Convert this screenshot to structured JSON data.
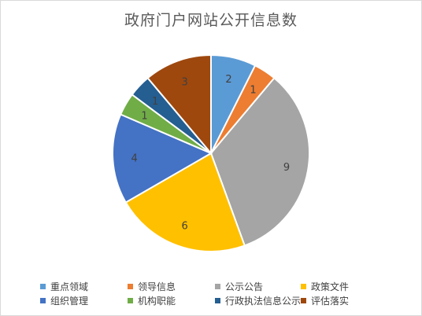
{
  "chart_data": {
    "type": "pie",
    "title": "政府门户网站公开信息数",
    "categories": [
      "重点领域",
      "领导信息",
      "公示公告",
      "政策文件",
      "组织管理",
      "机构职能",
      "行政执法信息公示",
      "评估落实"
    ],
    "values": [
      2,
      1,
      9,
      6,
      4,
      1,
      1,
      3
    ],
    "colors": [
      "#5b9bd5",
      "#ed7d31",
      "#a5a5a5",
      "#ffc000",
      "#4472c4",
      "#70ad47",
      "#255e91",
      "#9e480e"
    ],
    "legend_position": "bottom",
    "data_labels": true
  }
}
